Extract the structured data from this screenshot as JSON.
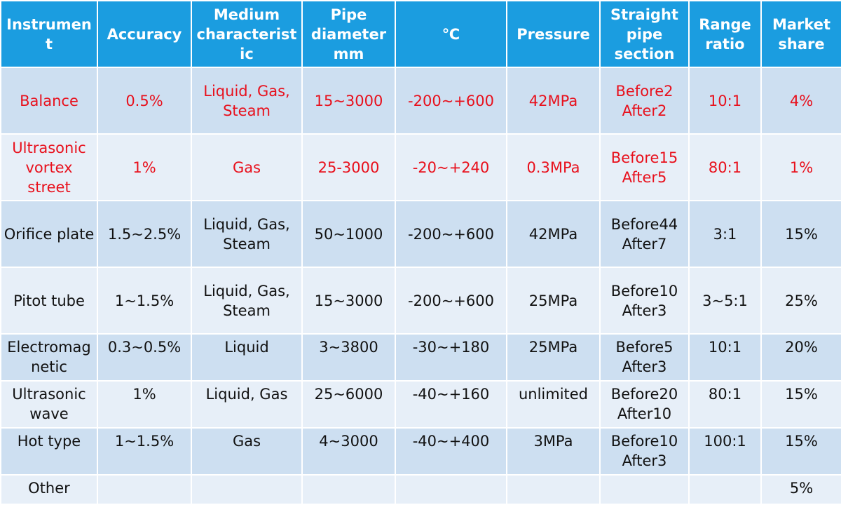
{
  "table": {
    "header": [
      "Instrument",
      "Accuracy",
      "Medium characteristic",
      "Pipe diameter mm",
      "℃",
      "Pressure",
      "Straight pipe section",
      "Range ratio",
      "Market share"
    ],
    "rows": [
      [
        "Balance",
        "0.5%",
        "Liquid, Gas, Steam",
        "15~3000",
        "-200~+600",
        "42MPa",
        "Before2 After2",
        "10:1",
        "4%"
      ],
      [
        "Ultrasonic vortex street",
        "1%",
        "Gas",
        "25-3000",
        "-20~+240",
        "0.3MPa",
        "Before15 After5",
        "80:1",
        "1%"
      ],
      [
        "Orifice plate",
        "1.5~2.5%",
        "Liquid, Gas, Steam",
        "50~1000",
        "-200~+600",
        "42MPa",
        "Before44 After7",
        "3:1",
        "15%"
      ],
      [
        "Pitot tube",
        "1~1.5%",
        "Liquid, Gas, Steam",
        "15~3000",
        "-200~+600",
        "25MPa",
        "Before10 After3",
        "3~5:1",
        "25%"
      ],
      [
        "Electromagnetic",
        "0.3~0.5%",
        "Liquid",
        "3~3800",
        "-30~+180",
        "25MPa",
        "Before5 After3",
        "10:1",
        "20%"
      ],
      [
        "Ultrasonic wave",
        "1%",
        "Liquid, Gas",
        "25~6000",
        "-40~+160",
        "unlimited",
        "Before20 After10",
        "80:1",
        "15%"
      ],
      [
        "Hot type",
        "1~1.5%",
        "Gas",
        "4~3000",
        "-40~+400",
        "3MPa",
        "Before10 After3",
        "100:1",
        "15%"
      ],
      [
        "Other",
        null,
        null,
        null,
        null,
        null,
        null,
        null,
        "5%"
      ]
    ],
    "highlight_rows": [
      0,
      1
    ],
    "highlight_color": "#e8101c"
  }
}
